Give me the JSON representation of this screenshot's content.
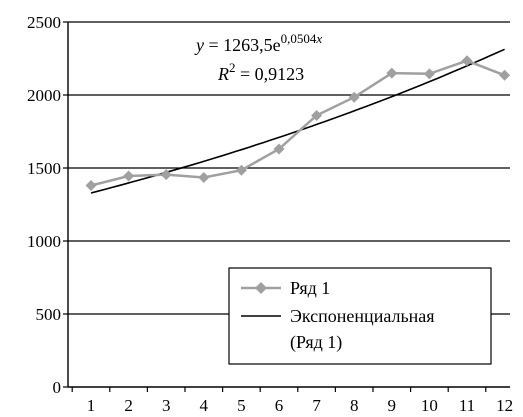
{
  "chart_data": {
    "type": "line",
    "x": [
      1,
      2,
      3,
      4,
      5,
      6,
      7,
      8,
      9,
      10,
      11,
      12
    ],
    "x_tick_labels": [
      "1",
      "2",
      "3",
      "4",
      "5",
      "6",
      "7",
      "8",
      "9",
      "10",
      "11",
      "12"
    ],
    "y_tick_labels": [
      "0",
      "500",
      "1000",
      "1500",
      "2000",
      "2500"
    ],
    "ylim": [
      0,
      2500
    ],
    "grid": "horizontal",
    "legend_placement": "bottom-right",
    "series": [
      {
        "name": "Ряд 1",
        "values": [
          1380,
          1445,
          1455,
          1435,
          1485,
          1630,
          1860,
          1985,
          2150,
          2145,
          2235,
          2135
        ],
        "color": "#a0a0a0",
        "marker": "diamond"
      }
    ],
    "trendline": {
      "name": "Экспоненциальная (Ряд 1)",
      "legend_line1": "Экспоненциальная",
      "legend_line2": "(Ряд 1)",
      "type": "exponential",
      "a": 1263.5,
      "b": 0.0504,
      "color": "#000000",
      "equation": {
        "y_var": "y",
        "eq_part": " = 1263,5e",
        "exponent": "0,0504",
        "x_var": "x"
      },
      "r_squared": {
        "var": "R",
        "power": "2",
        "value": " = 0,9123"
      }
    }
  }
}
